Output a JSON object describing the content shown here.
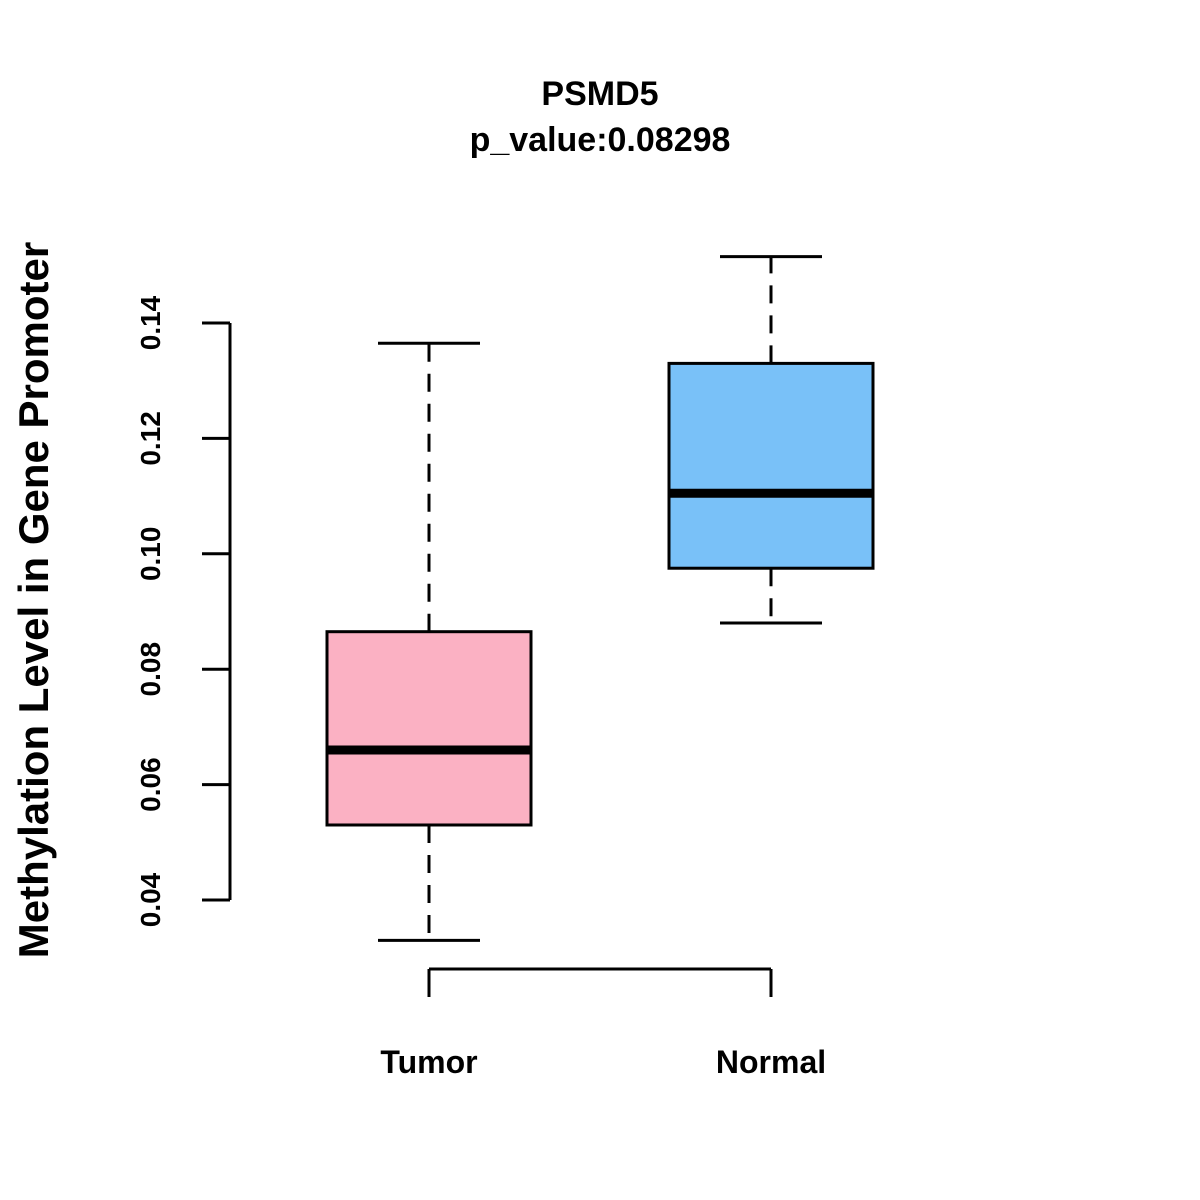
{
  "chart_data": {
    "type": "boxplot",
    "title": "PSMD5",
    "subtitle": "p_value:0.08298",
    "xlabel": "",
    "ylabel": "Methylation Level in Gene Promoter",
    "ylim": [
      0.04,
      0.14
    ],
    "yticks": [
      "0.04",
      "0.06",
      "0.08",
      "0.10",
      "0.12",
      "0.14"
    ],
    "grid": false,
    "groups": [
      {
        "name": "Tumor",
        "color": "#FBB1C3",
        "whisker_low": 0.033,
        "q1": 0.053,
        "median": 0.066,
        "q3": 0.0865,
        "whisker_high": 0.1365
      },
      {
        "name": "Normal",
        "color": "#79C1F8",
        "whisker_low": 0.088,
        "q1": 0.0975,
        "median": 0.1105,
        "q3": 0.133,
        "whisker_high": 0.1515
      }
    ]
  }
}
